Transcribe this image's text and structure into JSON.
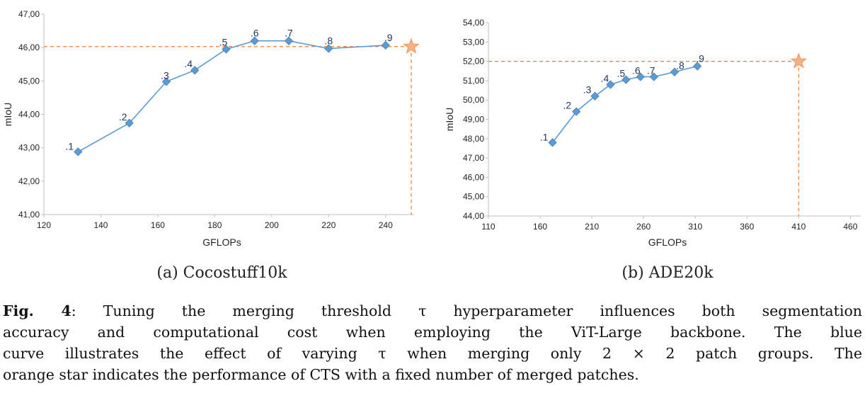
{
  "chart_data": [
    {
      "type": "line",
      "subcaption": "(a) Cocostuff10k",
      "xlabel": "GFLOPs",
      "ylabel": "mIoU",
      "xlim": [
        120,
        250
      ],
      "ylim": [
        41,
        47
      ],
      "x_ticks": [
        "120",
        "140",
        "160",
        "180",
        "200",
        "220",
        "240"
      ],
      "y_ticks": [
        "41,00",
        "42,00",
        "43,00",
        "44,00",
        "45,00",
        "46,00",
        "47,00"
      ],
      "grid": false,
      "series": [
        {
          "x": [
            132,
            150,
            163,
            173,
            184,
            194,
            206,
            220,
            240
          ],
          "y": [
            42.88,
            43.74,
            44.98,
            45.32,
            45.95,
            46.2,
            46.2,
            45.97,
            46.07
          ],
          "point_labels": [
            ".1",
            ".2",
            ".3",
            ".4",
            ".5",
            ".6",
            ".7",
            ".8",
            ".9"
          ],
          "color": "#5b9bd5"
        }
      ],
      "reference_point": {
        "x": 249,
        "y": 46.03,
        "marker": "star",
        "color": "#f4b183",
        "line_color": "#ed7d31"
      }
    },
    {
      "type": "line",
      "subcaption": "(b) ADE20k",
      "xlabel": "GFLOPs",
      "ylabel": "mIoU",
      "xlim": [
        110,
        470
      ],
      "ylim": [
        44,
        54
      ],
      "x_ticks": [
        "110",
        "160",
        "210",
        "260",
        "310",
        "360",
        "410",
        "460"
      ],
      "y_ticks": [
        "44,00",
        "45,00",
        "46,00",
        "47,00",
        "48,00",
        "49,00",
        "50,00",
        "51,00",
        "52,00",
        "53,00",
        "54,00"
      ],
      "grid": false,
      "series": [
        {
          "x": [
            172,
            195,
            213,
            228,
            243,
            257,
            270,
            290,
            312
          ],
          "y": [
            47.8,
            49.4,
            50.2,
            50.8,
            51.05,
            51.2,
            51.2,
            51.45,
            51.75
          ],
          "point_labels": [
            ".1",
            ".2",
            ".3",
            ".4",
            ".5",
            ".6",
            ".7",
            ".8",
            ".9"
          ],
          "color": "#5b9bd5"
        }
      ],
      "reference_point": {
        "x": 410,
        "y": 52.0,
        "marker": "star",
        "color": "#f4b183",
        "line_color": "#ed7d31"
      }
    }
  ],
  "caption": {
    "fig_label": "Fig. 4",
    "line1": ": Tuning the merging threshold τ hyperparameter influences both segmentation",
    "line2": "accuracy and computational cost when employing the ViT-Large backbone. The blue",
    "line3": "curve illustrates the effect of varying τ when merging only 2 × 2 patch groups. The",
    "line4": "orange star indicates the performance of CTS with a fixed number of merged patches."
  }
}
